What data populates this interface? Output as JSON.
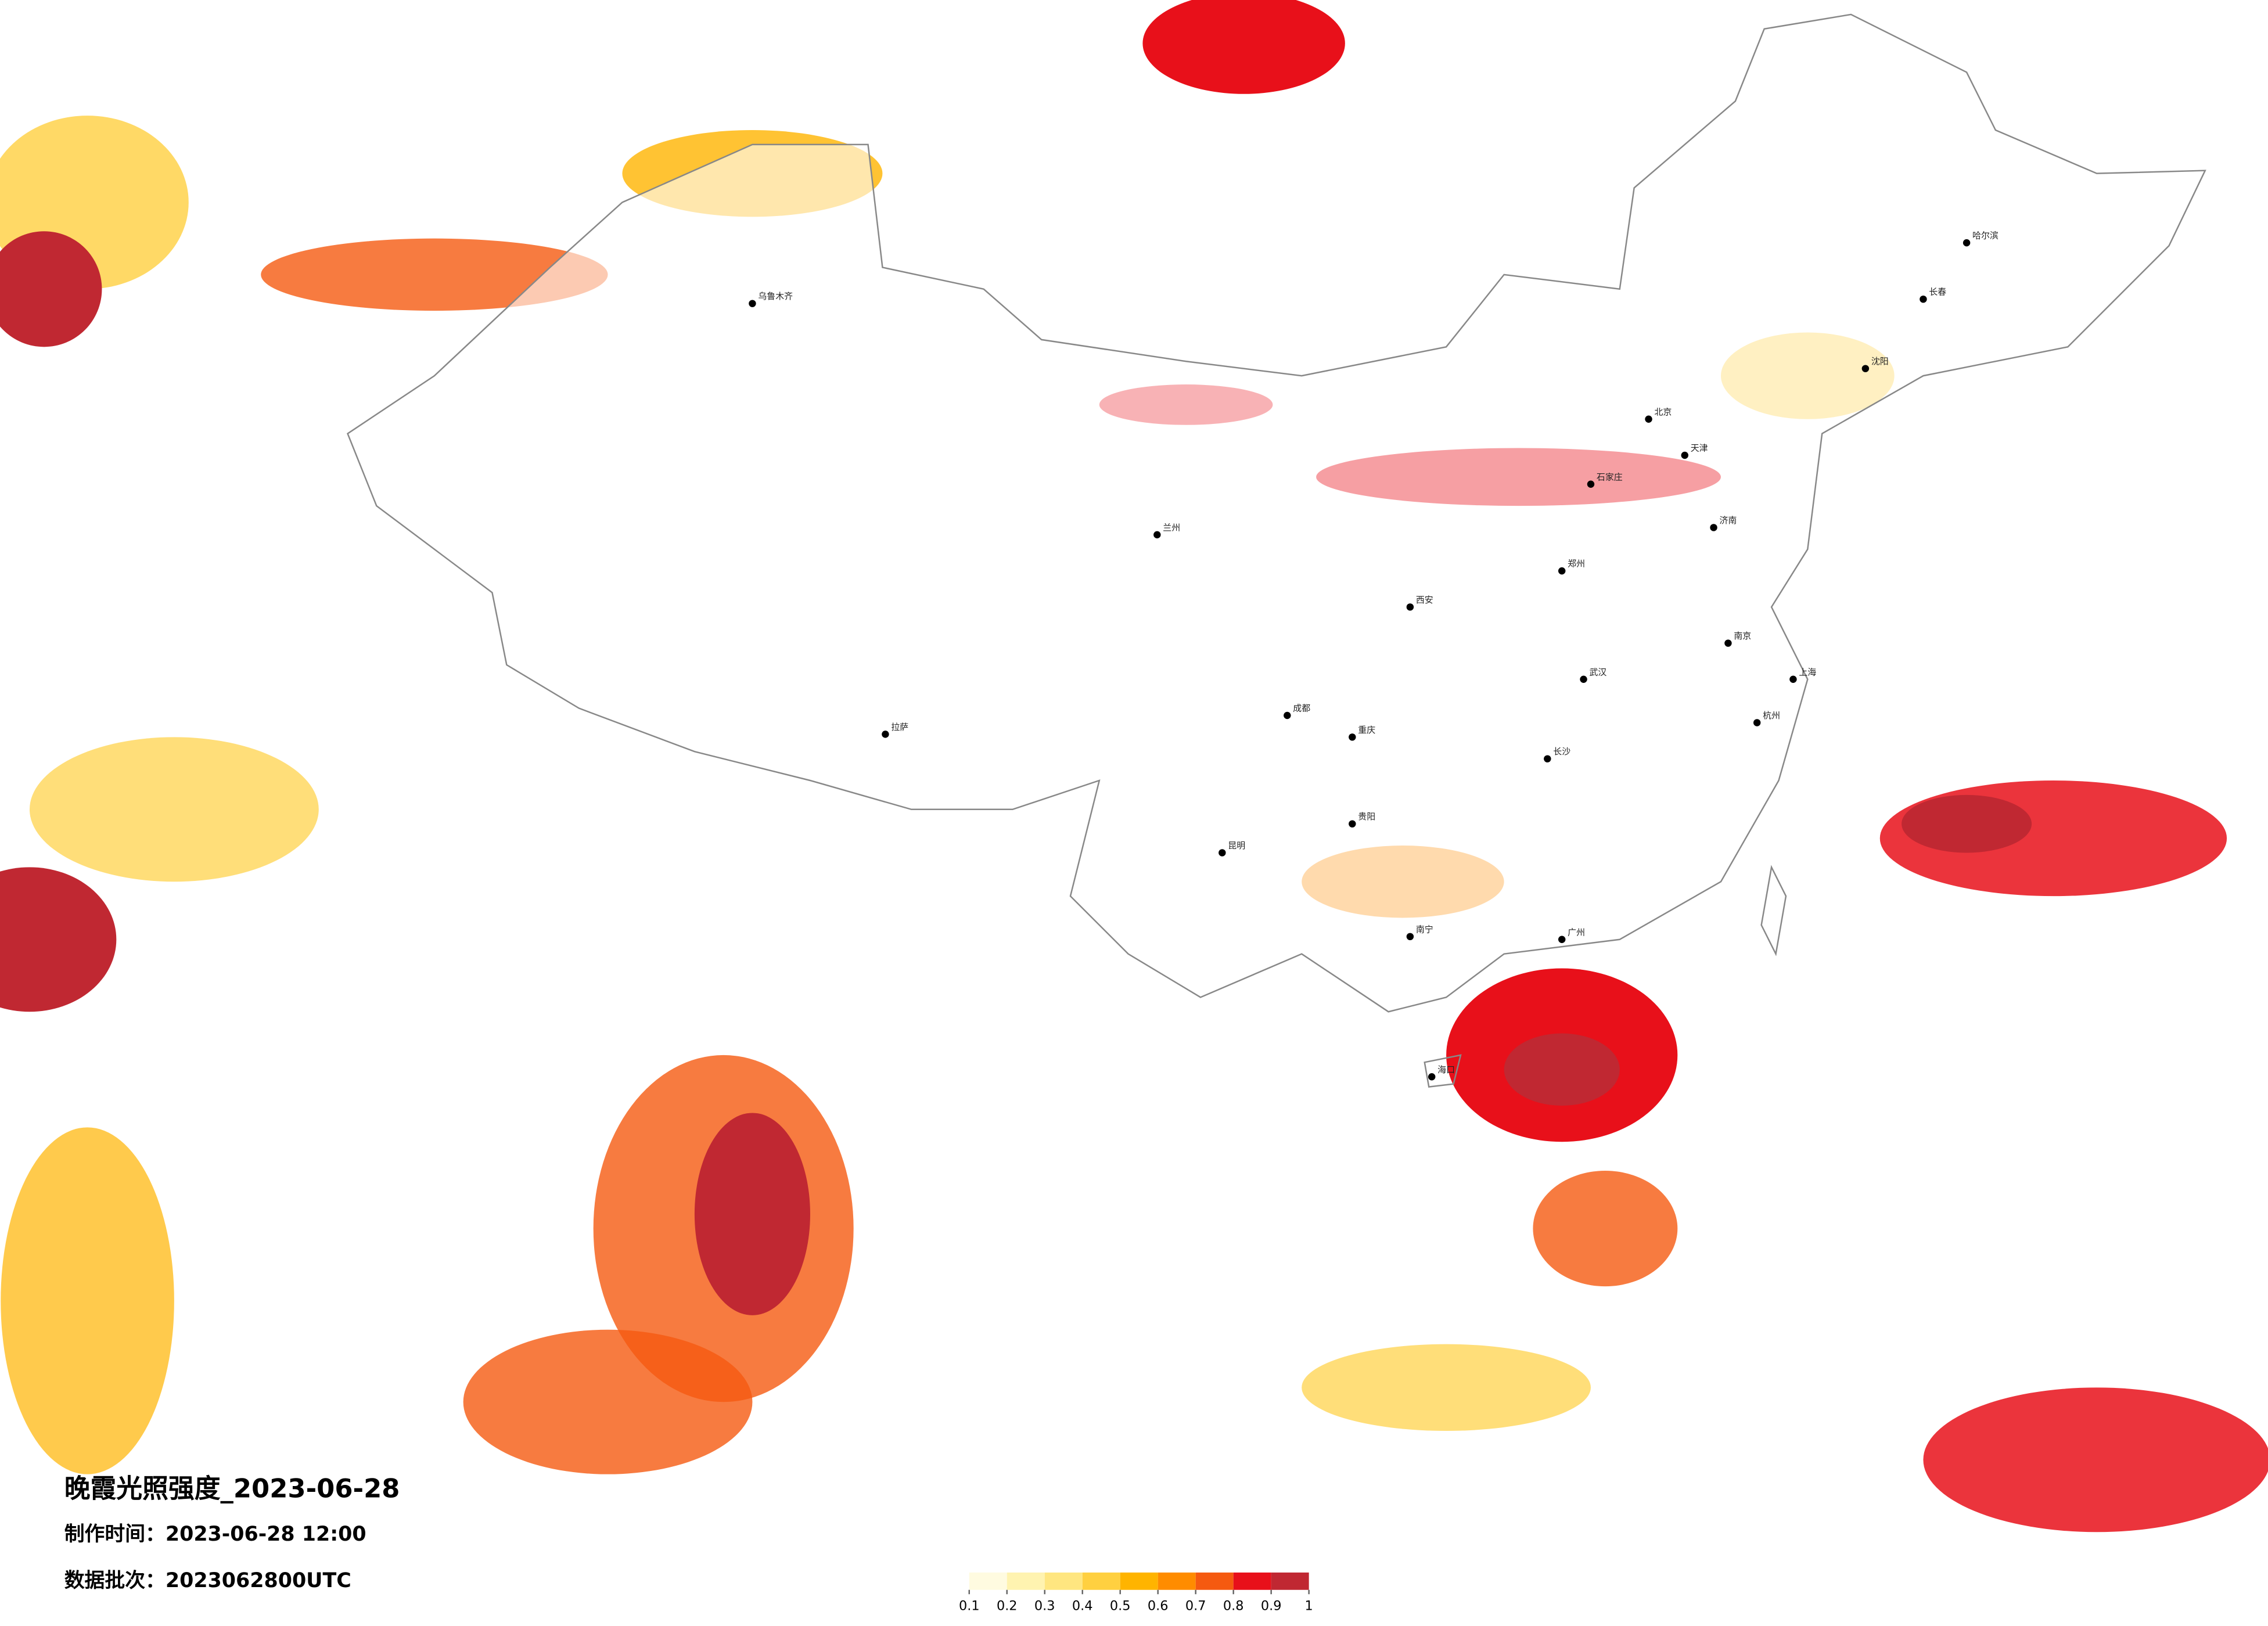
{
  "map": {
    "title": "晚霞光照强度_2023-06-28",
    "made_time": "制作时间：2023-06-28 12:00",
    "batch": "数据批次：2023062800UTC",
    "legend": {
      "colors": [
        "#fffbe0",
        "#fff3b0",
        "#ffe680",
        "#ffd040",
        "#ffb400",
        "#ff8c00",
        "#f55a10",
        "#e8101a",
        "#c02832"
      ],
      "ticks": [
        0.1,
        0.2,
        0.3,
        0.4,
        0.5,
        0.6,
        0.7,
        0.8,
        0.9,
        1
      ]
    },
    "cities": [
      "哈尔滨",
      "长春",
      "沈阳",
      "北京",
      "天津",
      "石家庄",
      "济南",
      "郑州",
      "西安",
      "武汉",
      "南京",
      "上海",
      "杭州",
      "长沙",
      "广州",
      "成都",
      "重庆",
      "昆明",
      "贵阳",
      "拉萨",
      "乌鲁木齐",
      "兰州",
      "南宁",
      "海口"
    ]
  }
}
